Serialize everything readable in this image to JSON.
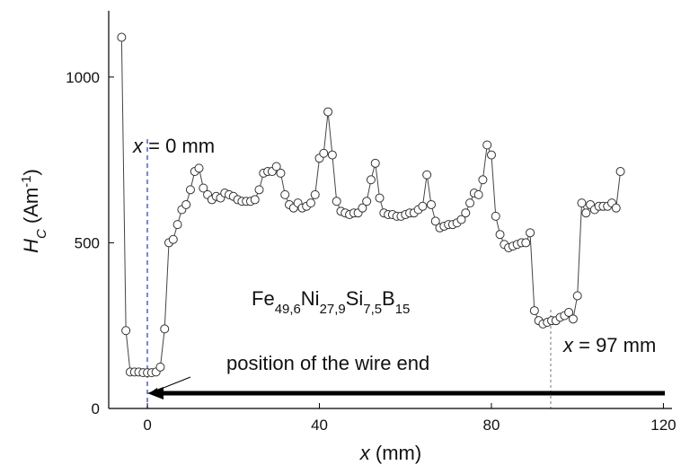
{
  "chart_data": {
    "type": "scatter-line",
    "x_label_parts": [
      {
        "text": "x",
        "italic": true
      },
      {
        "text": " (mm)"
      }
    ],
    "y_label_parts": [
      {
        "text": "H",
        "italic": true
      },
      {
        "text": "C",
        "sub": true,
        "italic": true
      },
      {
        "text": " (Am"
      },
      {
        "text": "-1",
        "sup": true
      },
      {
        "text": ")"
      }
    ],
    "annotations": {
      "x0_label": [
        {
          "text": "x",
          "italic": true
        },
        {
          "text": " = 0 mm"
        }
      ],
      "x97_label": [
        {
          "text": "x",
          "italic": true
        },
        {
          "text": " = 97 mm"
        }
      ],
      "wire_end": "position of the wire end",
      "formula": [
        {
          "text": "Fe"
        },
        {
          "text": "49,6",
          "sub": true
        },
        {
          "text": "Ni"
        },
        {
          "text": "27,9",
          "sub": true
        },
        {
          "text": "Si"
        },
        {
          "text": "7,5",
          "sub": true
        },
        {
          "text": "B"
        },
        {
          "text": "15",
          "sub": true
        }
      ]
    },
    "x": [
      -6,
      -5,
      -4,
      -3,
      -2,
      -1,
      0,
      1,
      2,
      3,
      4,
      5,
      6,
      7,
      8,
      9,
      10,
      11,
      12,
      13,
      14,
      15,
      16,
      17,
      18,
      19,
      20,
      21,
      22,
      23,
      24,
      25,
      26,
      27,
      28,
      29,
      30,
      31,
      32,
      33,
      34,
      35,
      36,
      37,
      38,
      39,
      40,
      41,
      42,
      43,
      44,
      45,
      46,
      47,
      48,
      49,
      50,
      51,
      52,
      53,
      54,
      55,
      56,
      57,
      58,
      59,
      60,
      61,
      62,
      63,
      64,
      65,
      66,
      67,
      68,
      69,
      70,
      71,
      72,
      73,
      74,
      75,
      76,
      77,
      78,
      79,
      80,
      81,
      82,
      83,
      84,
      85,
      86,
      87,
      88,
      89,
      90,
      91,
      92,
      93,
      94,
      95,
      96,
      97,
      98,
      99,
      100,
      101,
      102,
      103,
      104,
      105,
      106,
      107,
      108,
      109,
      110
    ],
    "values": [
      1120,
      235,
      110,
      110,
      110,
      108,
      108,
      108,
      110,
      125,
      240,
      500,
      510,
      555,
      600,
      615,
      660,
      715,
      725,
      665,
      645,
      630,
      640,
      635,
      650,
      645,
      640,
      630,
      625,
      625,
      625,
      630,
      660,
      710,
      715,
      715,
      730,
      710,
      645,
      615,
      605,
      620,
      605,
      610,
      620,
      645,
      755,
      770,
      895,
      765,
      625,
      595,
      590,
      585,
      590,
      590,
      605,
      625,
      690,
      740,
      635,
      590,
      585,
      585,
      580,
      580,
      585,
      590,
      590,
      600,
      610,
      705,
      615,
      565,
      545,
      550,
      555,
      555,
      560,
      570,
      590,
      620,
      650,
      645,
      690,
      795,
      765,
      580,
      525,
      495,
      485,
      490,
      495,
      500,
      500,
      530,
      295,
      265,
      255,
      260,
      265,
      265,
      275,
      280,
      290,
      270,
      340,
      620,
      590,
      615,
      600,
      610,
      610,
      610,
      620,
      605,
      715
    ],
    "xlim": [
      -9,
      122
    ],
    "ylim": [
      0,
      1200
    ],
    "xticks": [
      0,
      40,
      80,
      120
    ],
    "yticks": [
      0,
      500,
      1000
    ],
    "marker_color": "#333333"
  }
}
